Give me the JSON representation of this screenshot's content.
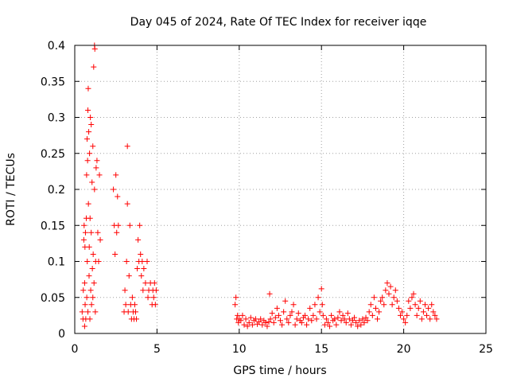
{
  "chart_data": {
    "type": "scatter",
    "title": "Day 045 of 2024, Rate Of TEC Index for receiver iqqe",
    "xlabel": "GPS time / hours",
    "ylabel": "ROTI / TECUs",
    "xlim": [
      0,
      25
    ],
    "ylim": [
      0,
      0.4
    ],
    "xticks": [
      0,
      5,
      10,
      15,
      20,
      25
    ],
    "yticks": [
      0,
      0.05,
      0.1,
      0.15,
      0.2,
      0.25,
      0.3,
      0.35,
      0.4
    ],
    "grid": true,
    "marker": "plus",
    "color": "#ff0000",
    "series": [
      {
        "values": [
          [
            0.45,
            0.03
          ],
          [
            0.5,
            0.02
          ],
          [
            0.52,
            0.06
          ],
          [
            0.55,
            0.13
          ],
          [
            0.57,
            0.15
          ],
          [
            0.6,
            0.07
          ],
          [
            0.6,
            0.01
          ],
          [
            0.62,
            0.12
          ],
          [
            0.63,
            0.04
          ],
          [
            0.65,
            0.14
          ],
          [
            0.67,
            0.02
          ],
          [
            0.7,
            0.16
          ],
          [
            0.72,
            0.22
          ],
          [
            0.73,
            0.05
          ],
          [
            0.75,
            0.27
          ],
          [
            0.76,
            0.1
          ],
          [
            0.78,
            0.24
          ],
          [
            0.8,
            0.31
          ],
          [
            0.8,
            0.03
          ],
          [
            0.82,
            0.34
          ],
          [
            0.83,
            0.18
          ],
          [
            0.85,
            0.28
          ],
          [
            0.87,
            0.08
          ],
          [
            0.88,
            0.12
          ],
          [
            0.9,
            0.25
          ],
          [
            0.92,
            0.02
          ],
          [
            0.93,
            0.16
          ],
          [
            0.95,
            0.3
          ],
          [
            0.97,
            0.06
          ],
          [
            1.0,
            0.29
          ],
          [
            1.0,
            0.14
          ],
          [
            1.02,
            0.04
          ],
          [
            1.05,
            0.21
          ],
          [
            1.07,
            0.09
          ],
          [
            1.1,
            0.26
          ],
          [
            1.1,
            0.05
          ],
          [
            1.12,
            0.11
          ],
          [
            1.15,
            0.37
          ],
          [
            1.17,
            0.07
          ],
          [
            1.2,
            0.4
          ],
          [
            1.2,
            0.2
          ],
          [
            1.22,
            0.395
          ],
          [
            1.25,
            0.03
          ],
          [
            1.27,
            0.1
          ],
          [
            1.3,
            0.23
          ],
          [
            1.35,
            0.24
          ],
          [
            1.4,
            0.14
          ],
          [
            1.45,
            0.1
          ],
          [
            1.5,
            0.22
          ],
          [
            1.55,
            0.13
          ],
          [
            2.35,
            0.2
          ],
          [
            2.4,
            0.15
          ],
          [
            2.45,
            0.11
          ],
          [
            2.5,
            0.22
          ],
          [
            2.55,
            0.14
          ],
          [
            2.6,
            0.19
          ],
          [
            2.65,
            0.15
          ],
          [
            3.0,
            0.03
          ],
          [
            3.05,
            0.06
          ],
          [
            3.1,
            0.04
          ],
          [
            3.15,
            0.1
          ],
          [
            3.2,
            0.26
          ],
          [
            3.2,
            0.18
          ],
          [
            3.25,
            0.03
          ],
          [
            3.3,
            0.08
          ],
          [
            3.35,
            0.15
          ],
          [
            3.4,
            0.04
          ],
          [
            3.45,
            0.02
          ],
          [
            3.5,
            0.05
          ],
          [
            3.55,
            0.03
          ],
          [
            3.6,
            0.02
          ],
          [
            3.65,
            0.04
          ],
          [
            3.7,
            0.03
          ],
          [
            3.75,
            0.02
          ],
          [
            3.8,
            0.09
          ],
          [
            3.85,
            0.13
          ],
          [
            3.9,
            0.1
          ],
          [
            3.95,
            0.15
          ],
          [
            4.0,
            0.11
          ],
          [
            4.05,
            0.08
          ],
          [
            4.1,
            0.1
          ],
          [
            4.15,
            0.06
          ],
          [
            4.2,
            0.09
          ],
          [
            4.3,
            0.07
          ],
          [
            4.4,
            0.1
          ],
          [
            4.45,
            0.05
          ],
          [
            4.5,
            0.06
          ],
          [
            4.6,
            0.07
          ],
          [
            4.7,
            0.04
          ],
          [
            4.75,
            0.06
          ],
          [
            4.8,
            0.05
          ],
          [
            4.85,
            0.07
          ],
          [
            4.9,
            0.04
          ],
          [
            4.95,
            0.06
          ],
          [
            9.75,
            0.04
          ],
          [
            9.8,
            0.05
          ],
          [
            9.85,
            0.02
          ],
          [
            9.9,
            0.025
          ],
          [
            9.95,
            0.015
          ],
          [
            10.0,
            0.02
          ],
          [
            10.1,
            0.018
          ],
          [
            10.2,
            0.025
          ],
          [
            10.3,
            0.012
          ],
          [
            10.4,
            0.02
          ],
          [
            10.5,
            0.01
          ],
          [
            10.6,
            0.015
          ],
          [
            10.7,
            0.022
          ],
          [
            10.8,
            0.012
          ],
          [
            10.9,
            0.018
          ],
          [
            11.0,
            0.02
          ],
          [
            11.1,
            0.013
          ],
          [
            11.2,
            0.016
          ],
          [
            11.3,
            0.02
          ],
          [
            11.4,
            0.012
          ],
          [
            11.5,
            0.018
          ],
          [
            11.6,
            0.015
          ],
          [
            11.7,
            0.01
          ],
          [
            11.8,
            0.016
          ],
          [
            11.85,
            0.055
          ],
          [
            11.9,
            0.02
          ],
          [
            12.0,
            0.028
          ],
          [
            12.1,
            0.015
          ],
          [
            12.2,
            0.022
          ],
          [
            12.3,
            0.035
          ],
          [
            12.4,
            0.025
          ],
          [
            12.5,
            0.018
          ],
          [
            12.6,
            0.012
          ],
          [
            12.7,
            0.03
          ],
          [
            12.8,
            0.045
          ],
          [
            12.9,
            0.02
          ],
          [
            13.0,
            0.015
          ],
          [
            13.1,
            0.025
          ],
          [
            13.2,
            0.03
          ],
          [
            13.3,
            0.04
          ],
          [
            13.4,
            0.012
          ],
          [
            13.5,
            0.02
          ],
          [
            13.6,
            0.028
          ],
          [
            13.7,
            0.018
          ],
          [
            13.8,
            0.015
          ],
          [
            13.9,
            0.022
          ],
          [
            14.0,
            0.025
          ],
          [
            14.1,
            0.012
          ],
          [
            14.2,
            0.02
          ],
          [
            14.3,
            0.035
          ],
          [
            14.4,
            0.018
          ],
          [
            14.5,
            0.025
          ],
          [
            14.6,
            0.04
          ],
          [
            14.7,
            0.02
          ],
          [
            14.8,
            0.05
          ],
          [
            14.9,
            0.03
          ],
          [
            15.0,
            0.062
          ],
          [
            15.05,
            0.04
          ],
          [
            15.1,
            0.025
          ],
          [
            15.2,
            0.012
          ],
          [
            15.3,
            0.02
          ],
          [
            15.4,
            0.015
          ],
          [
            15.5,
            0.01
          ],
          [
            15.6,
            0.025
          ],
          [
            15.7,
            0.018
          ],
          [
            15.8,
            0.02
          ],
          [
            15.9,
            0.012
          ],
          [
            16.0,
            0.022
          ],
          [
            16.1,
            0.03
          ],
          [
            16.2,
            0.018
          ],
          [
            16.3,
            0.025
          ],
          [
            16.4,
            0.02
          ],
          [
            16.5,
            0.015
          ],
          [
            16.6,
            0.028
          ],
          [
            16.7,
            0.02
          ],
          [
            16.8,
            0.012
          ],
          [
            16.9,
            0.018
          ],
          [
            17.0,
            0.022
          ],
          [
            17.1,
            0.015
          ],
          [
            17.2,
            0.01
          ],
          [
            17.3,
            0.018
          ],
          [
            17.4,
            0.012
          ],
          [
            17.5,
            0.02
          ],
          [
            17.6,
            0.015
          ],
          [
            17.7,
            0.022
          ],
          [
            17.8,
            0.018
          ],
          [
            17.9,
            0.03
          ],
          [
            18.0,
            0.04
          ],
          [
            18.1,
            0.025
          ],
          [
            18.2,
            0.05
          ],
          [
            18.3,
            0.035
          ],
          [
            18.4,
            0.02
          ],
          [
            18.5,
            0.03
          ],
          [
            18.6,
            0.045
          ],
          [
            18.7,
            0.05
          ],
          [
            18.8,
            0.04
          ],
          [
            18.9,
            0.06
          ],
          [
            19.0,
            0.07
          ],
          [
            19.1,
            0.055
          ],
          [
            19.2,
            0.065
          ],
          [
            19.3,
            0.04
          ],
          [
            19.4,
            0.05
          ],
          [
            19.5,
            0.06
          ],
          [
            19.6,
            0.045
          ],
          [
            19.7,
            0.035
          ],
          [
            19.8,
            0.025
          ],
          [
            19.9,
            0.03
          ],
          [
            20.0,
            0.02
          ],
          [
            20.1,
            0.015
          ],
          [
            20.2,
            0.025
          ],
          [
            20.3,
            0.045
          ],
          [
            20.4,
            0.035
          ],
          [
            20.5,
            0.05
          ],
          [
            20.6,
            0.055
          ],
          [
            20.7,
            0.04
          ],
          [
            20.8,
            0.025
          ],
          [
            20.9,
            0.035
          ],
          [
            21.0,
            0.045
          ],
          [
            21.1,
            0.02
          ],
          [
            21.2,
            0.03
          ],
          [
            21.3,
            0.04
          ],
          [
            21.4,
            0.025
          ],
          [
            21.5,
            0.035
          ],
          [
            21.6,
            0.02
          ],
          [
            21.7,
            0.04
          ],
          [
            21.8,
            0.03
          ],
          [
            21.9,
            0.025
          ],
          [
            22.0,
            0.02
          ]
        ]
      }
    ]
  }
}
